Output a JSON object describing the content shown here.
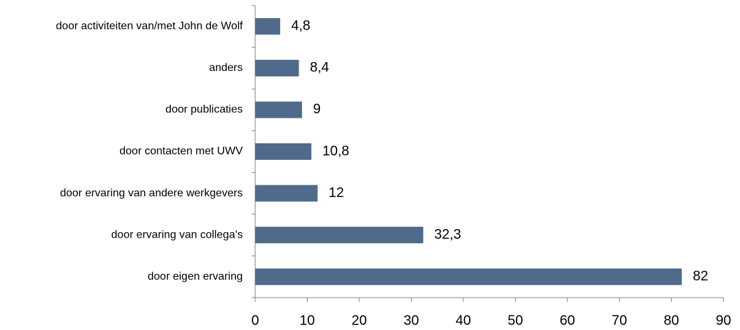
{
  "chart_data": {
    "type": "bar",
    "orientation": "horizontal",
    "categories": [
      "door activiteiten van/met John de Wolf",
      "anders",
      "door publicaties",
      "door contacten met UWV",
      "door ervaring van andere werkgevers",
      "door ervaring van collega's",
      "door eigen ervaring"
    ],
    "values": [
      4.8,
      8.4,
      9,
      10.8,
      12,
      32.3,
      82
    ],
    "value_labels": [
      "4,8",
      "8,4",
      "9",
      "10,8",
      "12",
      "32,3",
      "82"
    ],
    "color": "#4f6a8a",
    "xlim": [
      0,
      90
    ],
    "xticks": [
      0,
      10,
      20,
      30,
      40,
      50,
      60,
      70,
      80,
      90
    ],
    "grid": false
  }
}
